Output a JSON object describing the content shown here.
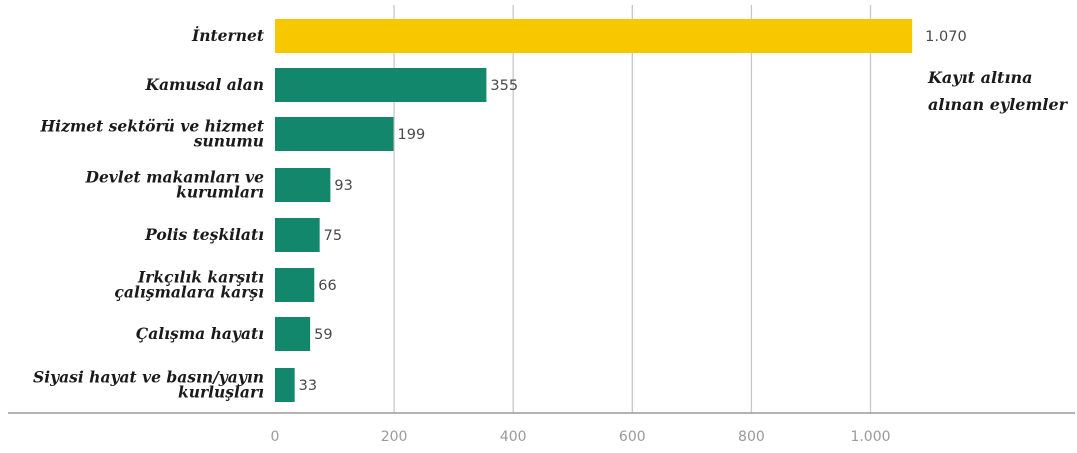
{
  "chart_data": {
    "type": "bar",
    "orientation": "horizontal",
    "categories": [
      [
        "İnternet"
      ],
      [
        "Kamusal alan"
      ],
      [
        "Hizmet sektörü ve hizmet",
        "sunumu"
      ],
      [
        "Devlet makamları ve",
        "kurumları"
      ],
      [
        "Polis teşkilatı"
      ],
      [
        "Irkçılık karşıtı",
        "çalışmalara karşı"
      ],
      [
        "Çalışma hayatı"
      ],
      [
        "Siyasi hayat ve basın/yayın",
        "kurluşları"
      ]
    ],
    "values": [
      1070,
      355,
      199,
      93,
      75,
      66,
      59,
      33
    ],
    "value_labels": [
      "1.070",
      "355",
      "199",
      "93",
      "75",
      "66",
      "59",
      "33"
    ],
    "bar_colors": [
      "#F7C700",
      "#13876B",
      "#13876B",
      "#13876B",
      "#13876B",
      "#13876B",
      "#13876B",
      "#13876B"
    ],
    "xlim": [
      0,
      1150
    ],
    "xticks": [
      0,
      200,
      400,
      600,
      800,
      1000
    ],
    "xtick_labels": [
      "0",
      "200",
      "400",
      "600",
      "800",
      "1.000"
    ],
    "grid": true,
    "annotation": [
      "Kayıt altına",
      "alınan eylemler"
    ],
    "title": "",
    "xlabel": "",
    "ylabel": ""
  }
}
